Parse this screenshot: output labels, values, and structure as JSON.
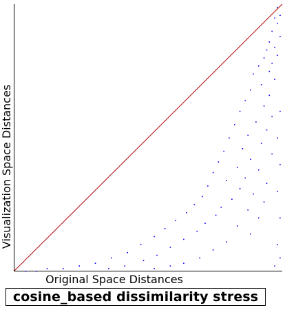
{
  "chart_data": {
    "type": "scatter",
    "title": "cosine_based dissimilarity stress",
    "xlabel": "Original Space Distances",
    "ylabel": "Visualization Space Distances",
    "xlim": [
      0,
      1
    ],
    "ylim": [
      0,
      1
    ],
    "grid": false,
    "legend": "none",
    "reference_line": {
      "from": [
        0,
        0
      ],
      "to": [
        1,
        1
      ],
      "color": "#b30000"
    },
    "series": [
      {
        "point_color": "#0000ff",
        "points": [
          [
            0.98,
            0.99
          ],
          [
            0.99,
            0.96
          ],
          [
            0.97,
            0.95
          ],
          [
            0.98,
            0.93
          ],
          [
            0.96,
            0.9
          ],
          [
            0.99,
            0.88
          ],
          [
            0.95,
            0.86
          ],
          [
            0.97,
            0.84
          ],
          [
            0.94,
            0.83
          ],
          [
            0.98,
            0.81
          ],
          [
            0.93,
            0.8
          ],
          [
            0.96,
            0.78
          ],
          [
            0.91,
            0.77
          ],
          [
            0.95,
            0.75
          ],
          [
            0.89,
            0.74
          ],
          [
            0.97,
            0.72
          ],
          [
            0.92,
            0.7
          ],
          [
            0.88,
            0.68
          ],
          [
            0.95,
            0.66
          ],
          [
            0.86,
            0.64
          ],
          [
            0.93,
            0.62
          ],
          [
            0.84,
            0.6
          ],
          [
            0.96,
            0.58
          ],
          [
            0.9,
            0.56
          ],
          [
            0.82,
            0.55
          ],
          [
            0.94,
            0.53
          ],
          [
            0.87,
            0.51
          ],
          [
            0.8,
            0.5
          ],
          [
            0.92,
            0.48
          ],
          [
            0.85,
            0.46
          ],
          [
            0.78,
            0.45
          ],
          [
            0.96,
            0.44
          ],
          [
            0.88,
            0.42
          ],
          [
            0.76,
            0.41
          ],
          [
            0.83,
            0.39
          ],
          [
            0.91,
            0.38
          ],
          [
            0.74,
            0.37
          ],
          [
            0.86,
            0.35
          ],
          [
            0.79,
            0.34
          ],
          [
            0.94,
            0.33
          ],
          [
            0.72,
            0.32
          ],
          [
            0.84,
            0.31
          ],
          [
            0.89,
            0.29
          ],
          [
            0.7,
            0.28
          ],
          [
            0.81,
            0.27
          ],
          [
            0.93,
            0.26
          ],
          [
            0.67,
            0.25
          ],
          [
            0.77,
            0.24
          ],
          [
            0.87,
            0.23
          ],
          [
            0.64,
            0.22
          ],
          [
            0.75,
            0.21
          ],
          [
            0.91,
            0.2
          ],
          [
            0.6,
            0.19
          ],
          [
            0.71,
            0.18
          ],
          [
            0.83,
            0.17
          ],
          [
            0.56,
            0.16
          ],
          [
            0.68,
            0.15
          ],
          [
            0.88,
            0.14
          ],
          [
            0.52,
            0.13
          ],
          [
            0.63,
            0.12
          ],
          [
            0.79,
            0.11
          ],
          [
            0.47,
            0.1
          ],
          [
            0.58,
            0.09
          ],
          [
            0.74,
            0.08
          ],
          [
            0.42,
            0.07
          ],
          [
            0.53,
            0.06
          ],
          [
            0.69,
            0.05
          ],
          [
            0.36,
            0.05
          ],
          [
            0.48,
            0.04
          ],
          [
            0.63,
            0.03
          ],
          [
            0.3,
            0.03
          ],
          [
            0.41,
            0.02
          ],
          [
            0.58,
            0.02
          ],
          [
            0.24,
            0.02
          ],
          [
            0.35,
            0.01
          ],
          [
            0.52,
            0.01
          ],
          [
            0.18,
            0.01
          ],
          [
            0.12,
            0.01
          ],
          [
            0.08,
            0.0
          ],
          [
            0.04,
            0.0
          ],
          [
            0.99,
            0.6
          ],
          [
            0.98,
            0.5
          ],
          [
            0.99,
            0.4
          ],
          [
            0.98,
            0.3
          ],
          [
            0.99,
            0.2
          ],
          [
            0.98,
            0.1
          ],
          [
            0.99,
            0.05
          ],
          [
            0.97,
            0.02
          ]
        ]
      }
    ]
  }
}
